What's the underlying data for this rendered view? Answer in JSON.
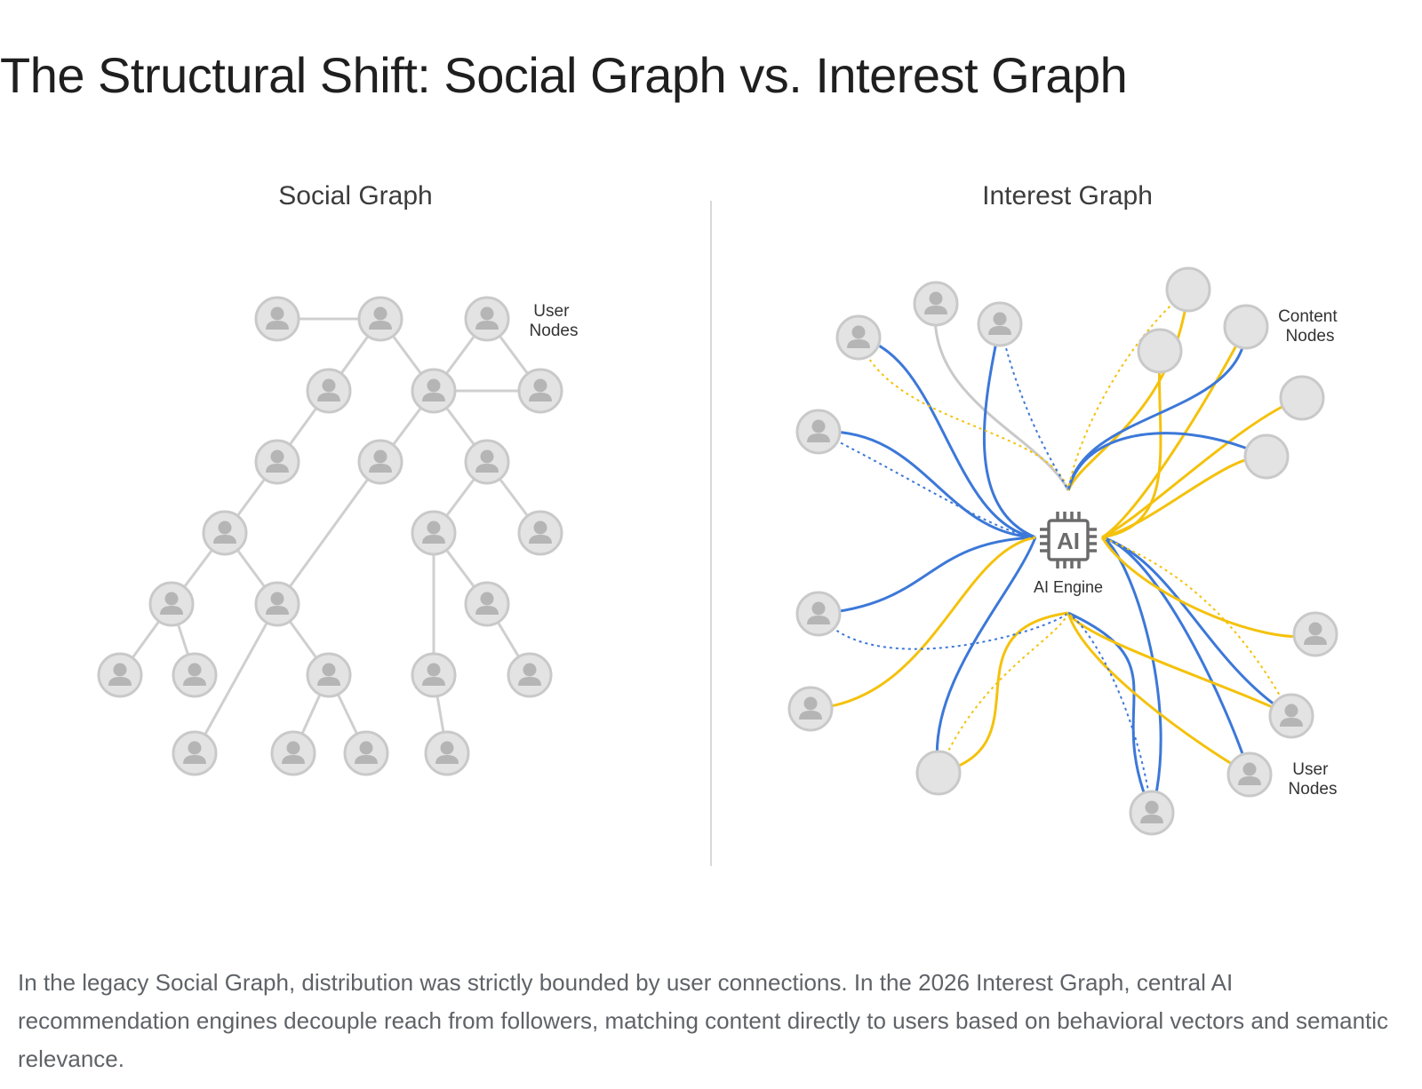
{
  "title": "The Structural Shift: Social Graph vs. Interest Graph",
  "caption": "In the legacy Social Graph, distribution was strictly bounded by user connections. In the 2026 Interest Graph, central AI recommendation engines decouple reach from followers, matching content directly to users based on behavioral vectors and semantic relevance.",
  "social_graph": {
    "title": "Social Graph",
    "label_line1": "User",
    "label_line2": "Nodes",
    "node_icon": "person-icon"
  },
  "interest_graph": {
    "title": "Interest Graph",
    "engine_chip": "AI",
    "engine_label": "AI Engine",
    "engine_icon": "cpu-chip-icon",
    "content_label_line1": "Content",
    "content_label_line2": "Nodes",
    "user_label_line1": "User",
    "user_label_line2": "Nodes",
    "node_icon": "person-icon",
    "content_node_icon": "circle-icon"
  },
  "colors": {
    "node_fill": "#e3e3e3",
    "node_stroke": "#c8c8c8",
    "person": "#b5b5b5",
    "social_edge": "#cfcfcf",
    "blue": "#3c78d8",
    "yellow": "#f4c20d",
    "gray_link": "#c9c9c9",
    "chip": "#6b6b6b",
    "divider": "#d9d9d9"
  }
}
